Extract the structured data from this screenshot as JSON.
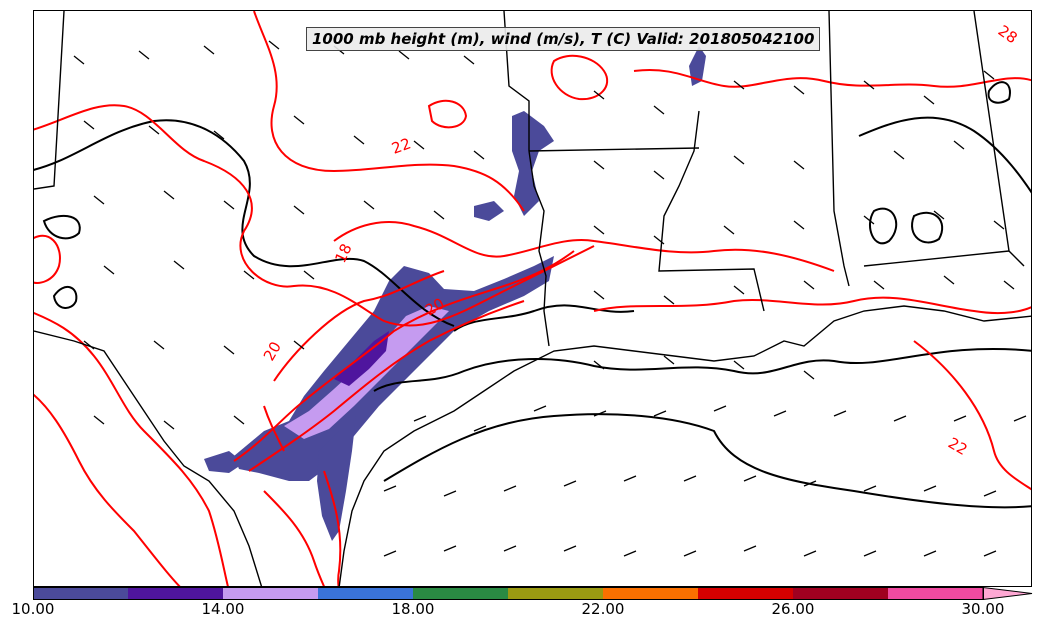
{
  "title": "1000 mb height (m), wind (m/s), T (C) Valid: 201805042100",
  "contour_labels": [
    "22",
    "18",
    "20",
    "20",
    "22",
    "28"
  ],
  "colorbar": {
    "ticks": [
      "10.00",
      "14.00",
      "18.00",
      "22.00",
      "26.00",
      "30.00"
    ],
    "colors": [
      "#4b4a9a",
      "#4f159e",
      "#c59bf0",
      "#3a73d8",
      "#2a8a43",
      "#9a9a12",
      "#fa7000",
      "#d60000",
      "#a00020",
      "#f04aa0",
      "#ffa8d4"
    ]
  },
  "colors": {
    "temperature_contour": "#ff0000",
    "height_contour": "#000000",
    "wind_barb": "#000000",
    "border": "#000000"
  }
}
